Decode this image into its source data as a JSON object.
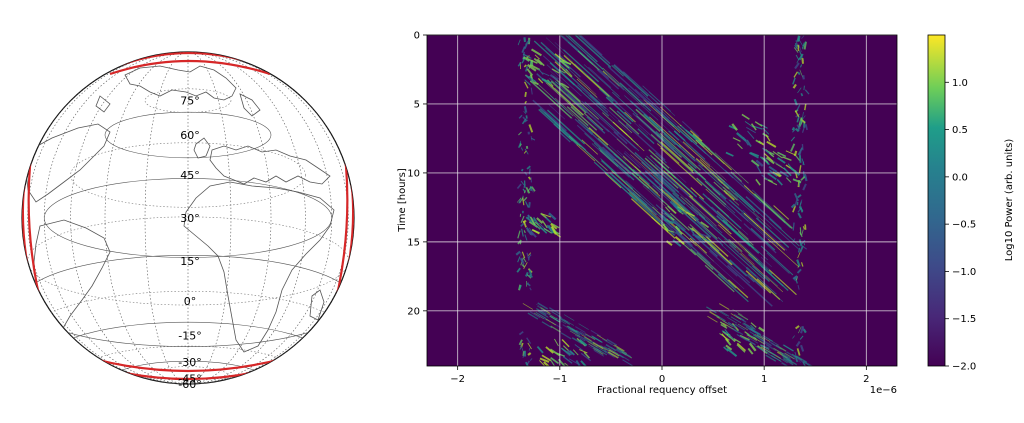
{
  "chart_data": [
    {
      "type": "map",
      "projection": "orthographic",
      "graticule": {
        "latitude_labels": [
          "75°",
          "60°",
          "45°",
          "30°",
          "15°",
          "0°",
          "-15°",
          "-30°",
          "-45°",
          "-60°"
        ],
        "latitudes": [
          75,
          60,
          45,
          30,
          15,
          0,
          -15,
          -30,
          -45,
          -60
        ],
        "meridian_step_deg": 15
      },
      "track_color": "#d62728",
      "coastline_color": "#444444",
      "grid_color": "#333333"
    },
    {
      "type": "heatmap",
      "xlabel": "Fractional requency offset",
      "ylabel": "Time [hours]",
      "x_multiplier_label": "1e−6",
      "xlim": [
        -2.3,
        2.3
      ],
      "ylim": [
        24,
        0
      ],
      "xticks": [
        -2,
        -1,
        0,
        1,
        2
      ],
      "xtick_labels": [
        "−2",
        "−1",
        "0",
        "1",
        "2"
      ],
      "yticks": [
        0,
        5,
        10,
        15,
        20
      ],
      "ytick_labels": [
        "0",
        "5",
        "10",
        "15",
        "20"
      ],
      "grid": true,
      "colormap": "viridis",
      "colorbar": {
        "label": "Log10 Power (arb. units)",
        "range": [
          -2.0,
          1.5
        ],
        "ticks": [
          1.0,
          0.5,
          0.0,
          -0.5,
          -1.0,
          -1.5,
          -2.0
        ],
        "tick_labels": [
          "1.0",
          "0.5",
          "0.0",
          "−0.5",
          "−1.0",
          "−1.5",
          "−2.0"
        ]
      },
      "band_edges_x": [
        -1.33,
        1.35
      ],
      "diagonal_track": {
        "start": [
          -1.1,
          2.0
        ],
        "end": [
          1.2,
          17.5
        ]
      }
    }
  ]
}
